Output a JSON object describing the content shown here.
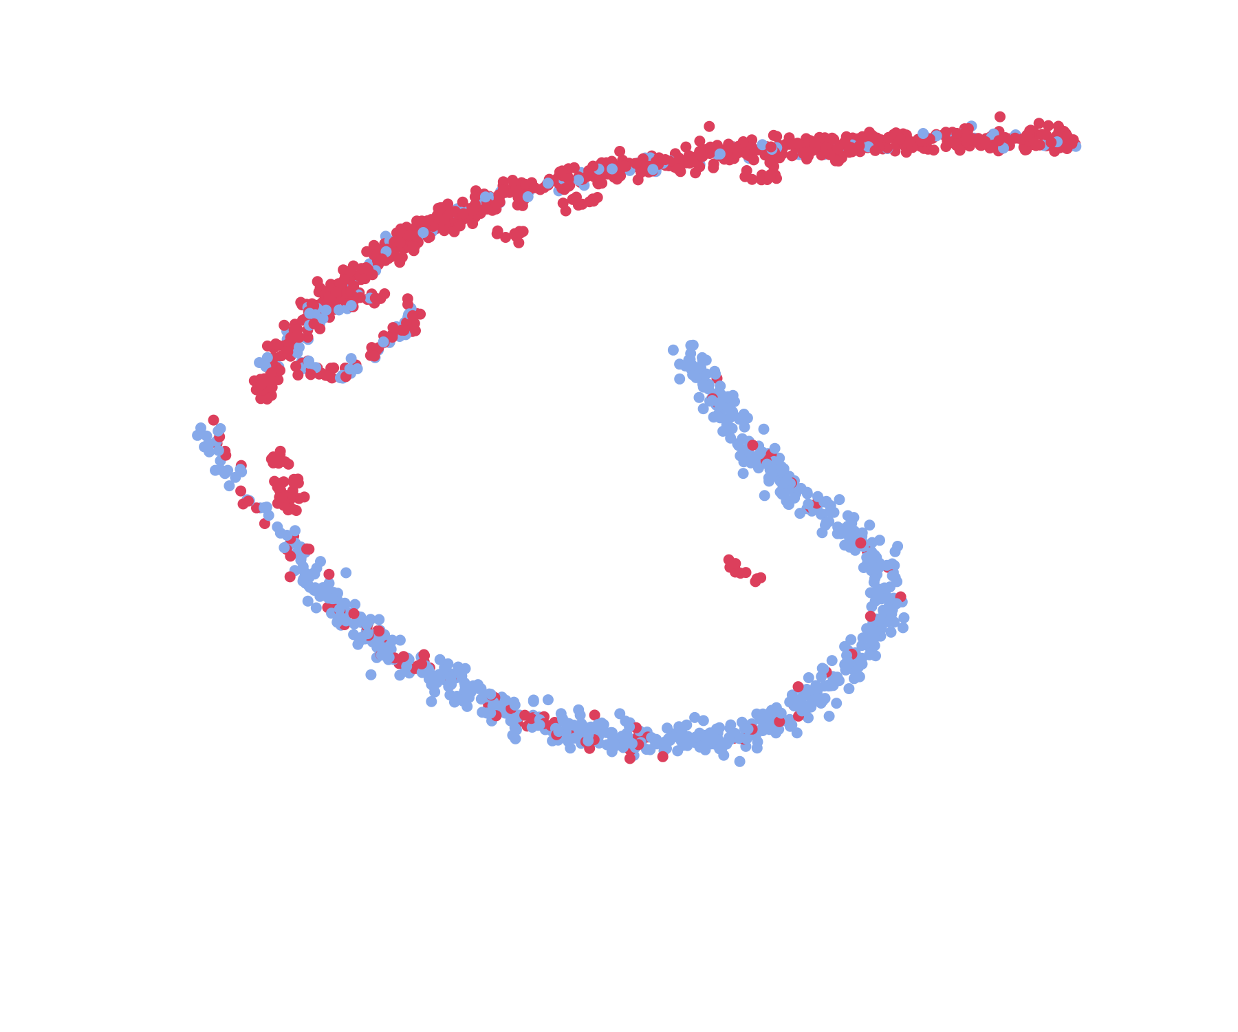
{
  "chart_data": {
    "type": "scatter",
    "title": "",
    "xlabel": "",
    "ylabel": "",
    "xlim": [
      0,
      100
    ],
    "ylim": [
      0,
      100
    ],
    "grid": false,
    "legend": "none",
    "series": [
      {
        "color": "#dc3f5c",
        "count": 950
      },
      {
        "color": "#86a9ea",
        "count": 900
      }
    ]
  }
}
